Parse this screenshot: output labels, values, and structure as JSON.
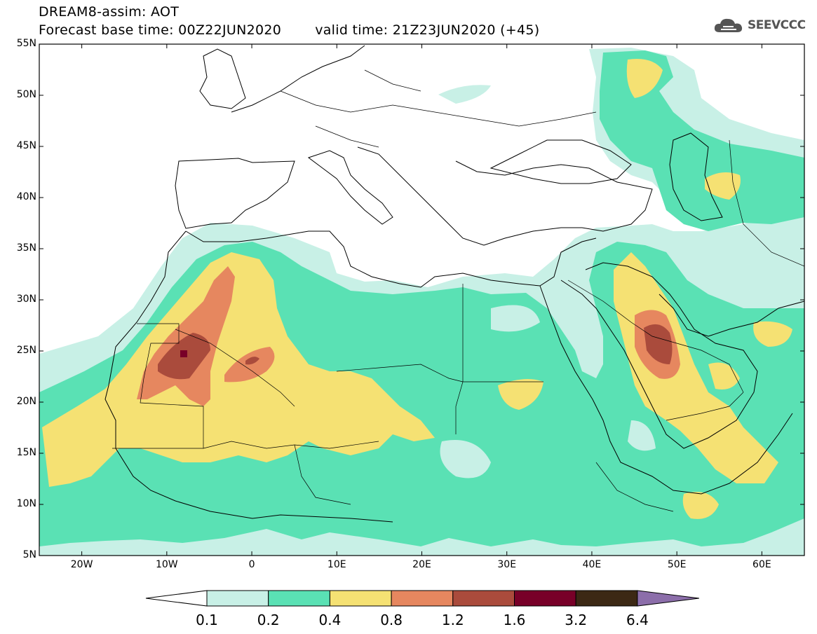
{
  "header": {
    "line1": "DREAM8-assim: AOT",
    "base_time": "Forecast base time: 00Z22JUN2020",
    "valid_time": "valid time: 21Z23JUN2020 (+45)"
  },
  "logo": {
    "text": "SEEVCCC",
    "icon": "cloud-icon"
  },
  "map": {
    "lon_range": [
      -25,
      65
    ],
    "lat_range": [
      5,
      55
    ],
    "lat_ticks": [
      "5N",
      "10N",
      "15N",
      "20N",
      "25N",
      "30N",
      "35N",
      "40N",
      "45N",
      "50N",
      "55N"
    ],
    "lon_ticks": [
      "20W",
      "10W",
      "0",
      "10E",
      "20E",
      "30E",
      "40E",
      "50E",
      "60E"
    ]
  },
  "colorbar": {
    "labels": [
      "0.1",
      "0.2",
      "0.4",
      "0.8",
      "1.2",
      "1.6",
      "3.2",
      "6.4"
    ],
    "colors": [
      "#c8f0e6",
      "#5ae1b4",
      "#f5e173",
      "#e6875f",
      "#aa4b3c",
      "#780028",
      "#3c2814",
      "#8c6eaa"
    ]
  }
}
